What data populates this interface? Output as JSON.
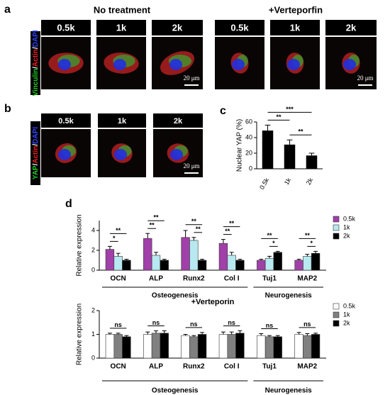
{
  "figure": {
    "panel_a": {
      "label": "a",
      "groups": [
        {
          "title": "No treatment",
          "columns": [
            "0.5k",
            "1k",
            "2k"
          ]
        },
        {
          "title": "+Verteporfin",
          "columns": [
            "0.5k",
            "1k",
            "2k"
          ]
        }
      ],
      "stain": [
        {
          "text": "Vinculin",
          "color": "#22cc22"
        },
        {
          "text": "/",
          "color": "#ffffff"
        },
        {
          "text": "Actin",
          "color": "#ee2222"
        },
        {
          "text": "/",
          "color": "#ffffff"
        },
        {
          "text": "DAPI",
          "color": "#3344ff"
        }
      ],
      "scale_bar": "20 μm"
    },
    "panel_b": {
      "label": "b",
      "columns": [
        "0.5k",
        "1k",
        "2k"
      ],
      "stain": [
        {
          "text": "YAP",
          "color": "#22cc22"
        },
        {
          "text": "/",
          "color": "#ffffff"
        },
        {
          "text": "Actin",
          "color": "#ee2222"
        },
        {
          "text": "/",
          "color": "#ffffff"
        },
        {
          "text": "DAPI",
          "color": "#3344ff"
        }
      ],
      "scale_bar": "20 μm"
    },
    "panel_c": {
      "label": "c"
    },
    "panel_d": {
      "label": "d"
    }
  },
  "chart_data": [
    {
      "type": "bar",
      "ylabel": "Nuclear YAP (%)",
      "categories": [
        "0.5k",
        "1k",
        "2k"
      ],
      "values": [
        49,
        31,
        17
      ],
      "errors": [
        7,
        6,
        3
      ],
      "color": "#000000",
      "ylim": [
        0,
        60
      ],
      "yticks": [
        0,
        20,
        40,
        60
      ],
      "annotations": [
        {
          "label": "**",
          "from": "0.5k",
          "to": "1k"
        },
        {
          "label": "**",
          "from": "1k",
          "to": "2k"
        },
        {
          "label": "***",
          "from": "0.5k",
          "to": "2k"
        }
      ]
    },
    {
      "type": "grouped_bar",
      "ylabel": "Relative expression",
      "categories": [
        "OCN",
        "ALP",
        "Runx2",
        "Col I",
        "Tuj1",
        "MAP2"
      ],
      "groups": [
        {
          "name": "Osteogenesis",
          "categories": [
            "OCN",
            "ALP",
            "Runx2",
            "Col I"
          ]
        },
        {
          "name": "Neurogenesis",
          "categories": [
            "Tuj1",
            "MAP2"
          ]
        }
      ],
      "series": [
        {
          "name": "0.5k",
          "color": "#a040a8",
          "values": [
            2.1,
            3.2,
            3.3,
            2.7,
            1.0,
            1.0
          ],
          "errors": [
            0.3,
            0.5,
            0.7,
            0.4,
            0.1,
            0.1
          ]
        },
        {
          "name": "1k",
          "color": "#b8e8f0",
          "values": [
            1.4,
            1.5,
            3.0,
            1.5,
            1.2,
            1.4
          ],
          "errors": [
            0.3,
            0.3,
            0.3,
            0.3,
            0.2,
            0.2
          ]
        },
        {
          "name": "2k",
          "color": "#000000",
          "values": [
            1.0,
            1.0,
            1.0,
            1.0,
            1.8,
            1.7
          ],
          "errors": [
            0.1,
            0.1,
            0.1,
            0.1,
            0.1,
            0.2
          ]
        }
      ],
      "ylim": [
        0,
        5
      ],
      "yticks": [
        0,
        2,
        4
      ],
      "legend": "right",
      "annotations": [
        {
          "category": "OCN",
          "label": "*",
          "from": "0.5k",
          "to": "1k"
        },
        {
          "category": "OCN",
          "label": "**",
          "from": "0.5k",
          "to": "2k"
        },
        {
          "category": "ALP",
          "label": "**",
          "from": "0.5k",
          "to": "1k"
        },
        {
          "category": "ALP",
          "label": "**",
          "from": "0.5k",
          "to": "2k"
        },
        {
          "category": "Runx2",
          "label": "**",
          "from": "1k",
          "to": "2k"
        },
        {
          "category": "Runx2",
          "label": "**",
          "from": "0.5k",
          "to": "2k"
        },
        {
          "category": "Col I",
          "label": "**",
          "from": "0.5k",
          "to": "1k"
        },
        {
          "category": "Col I",
          "label": "**",
          "from": "0.5k",
          "to": "2k"
        },
        {
          "category": "Tuj1",
          "label": "*",
          "from": "1k",
          "to": "2k"
        },
        {
          "category": "Tuj1",
          "label": "**",
          "from": "0.5k",
          "to": "2k"
        },
        {
          "category": "MAP2",
          "label": "*",
          "from": "1k",
          "to": "2k"
        },
        {
          "category": "MAP2",
          "label": "**",
          "from": "0.5k",
          "to": "2k"
        }
      ]
    },
    {
      "type": "grouped_bar",
      "title": "+Verteporin",
      "ylabel": "Relative expression",
      "categories": [
        "OCN",
        "ALP",
        "Runx2",
        "Col I",
        "Tuj1",
        "MAP2"
      ],
      "groups": [
        {
          "name": "Osteogenesis",
          "categories": [
            "OCN",
            "ALP",
            "Runx2",
            "Col I"
          ]
        },
        {
          "name": "Neurogenesis",
          "categories": [
            "Tuj1",
            "MAP2"
          ]
        }
      ],
      "series": [
        {
          "name": "0.5k",
          "color": "#ffffff",
          "values": [
            1.0,
            1.0,
            0.95,
            1.0,
            0.95,
            1.0
          ],
          "errors": [
            0.05,
            0.1,
            0.05,
            0.1,
            0.08,
            0.08
          ]
        },
        {
          "name": "1k",
          "color": "#808080",
          "values": [
            1.0,
            1.05,
            0.9,
            1.0,
            0.9,
            0.95
          ],
          "errors": [
            0.05,
            0.1,
            0.05,
            0.1,
            0.05,
            0.08
          ]
        },
        {
          "name": "2k",
          "color": "#000000",
          "values": [
            0.9,
            1.05,
            1.0,
            1.05,
            0.9,
            1.0
          ],
          "errors": [
            0.05,
            0.1,
            0.08,
            0.1,
            0.05,
            0.05
          ]
        }
      ],
      "ylim": [
        0,
        2
      ],
      "yticks": [
        0,
        1,
        2
      ],
      "legend": "right",
      "annotations": [
        {
          "category": "OCN",
          "label": "ns",
          "from": "0.5k",
          "to": "2k"
        },
        {
          "category": "ALP",
          "label": "ns",
          "from": "0.5k",
          "to": "2k"
        },
        {
          "category": "Runx2",
          "label": "ns",
          "from": "0.5k",
          "to": "2k"
        },
        {
          "category": "Col I",
          "label": "ns",
          "from": "0.5k",
          "to": "2k"
        },
        {
          "category": "Tuj1",
          "label": "ns",
          "from": "0.5k",
          "to": "2k"
        },
        {
          "category": "MAP2",
          "label": "ns",
          "from": "0.5k",
          "to": "2k"
        }
      ]
    }
  ]
}
